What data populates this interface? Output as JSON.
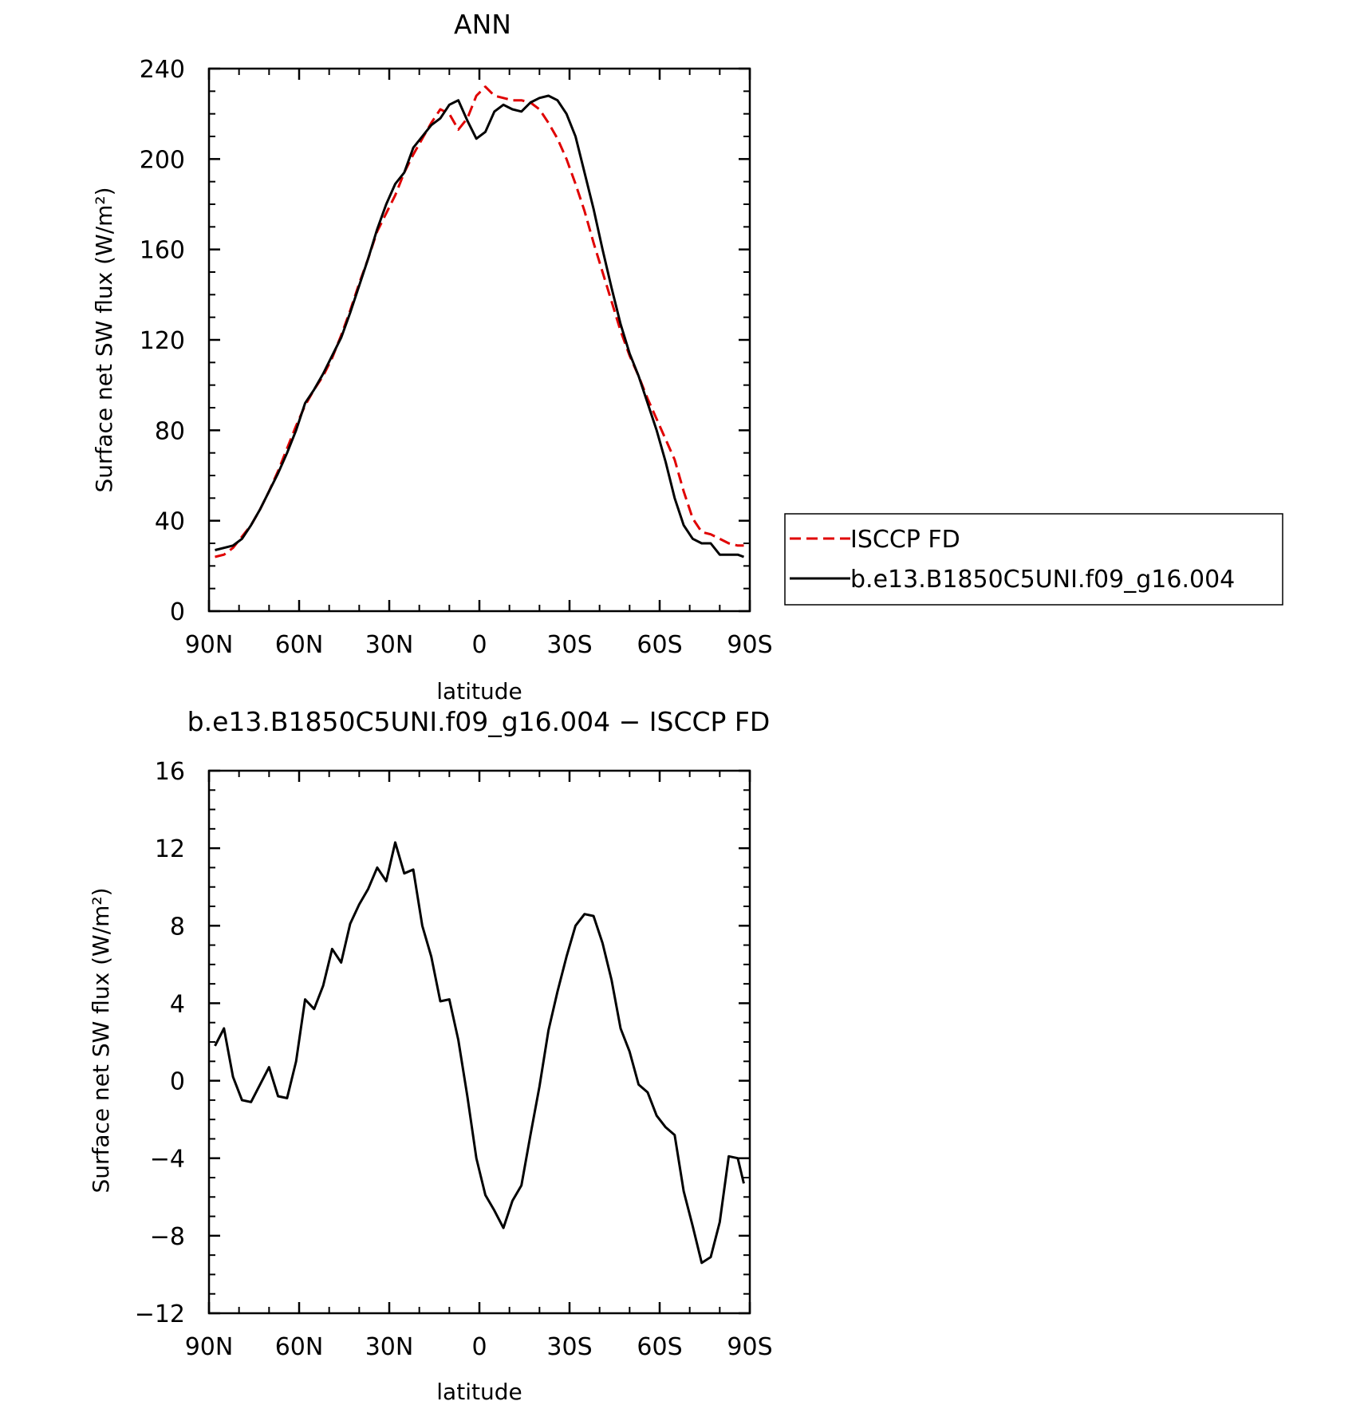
{
  "chart_data": [
    {
      "type": "line",
      "title": "ANN",
      "xlabel": "latitude",
      "ylabel": "Surface net SW flux (W/m²)",
      "xlim": [
        90,
        -90
      ],
      "ylim": [
        0,
        240
      ],
      "x_ticks": [
        90,
        60,
        30,
        0,
        -30,
        -60,
        -90
      ],
      "x_tick_labels": [
        "90N",
        "60N",
        "30N",
        "0",
        "30S",
        "60S",
        "90S"
      ],
      "y_ticks": [
        0,
        40,
        80,
        120,
        160,
        200,
        240
      ],
      "y_tick_labels": [
        "0",
        "40",
        "80",
        "120",
        "160",
        "200",
        "240"
      ],
      "legend_position": "right",
      "series": [
        {
          "name": "ISCCP FD",
          "color": "#e00000",
          "dash": true,
          "x": [
            88,
            85,
            82,
            79,
            76,
            73,
            70,
            67,
            64,
            61,
            58,
            55,
            52,
            49,
            46,
            43,
            40,
            37,
            34,
            31,
            28,
            25,
            22,
            19,
            16,
            13,
            10,
            7,
            4,
            1,
            -2,
            -5,
            -8,
            -11,
            -14,
            -17,
            -20,
            -23,
            -26,
            -29,
            -32,
            -35,
            -38,
            -41,
            -44,
            -47,
            -50,
            -53,
            -56,
            -59,
            -62,
            -65,
            -68,
            -71,
            -74,
            -77,
            -80,
            -83,
            -86,
            -88
          ],
          "y": [
            24,
            25,
            28,
            33,
            38,
            45,
            53,
            62,
            72,
            82,
            91,
            98,
            104,
            112,
            122,
            133,
            145,
            156,
            168,
            176,
            184,
            194,
            202,
            209,
            216,
            222,
            220,
            213,
            218,
            228,
            232,
            228,
            227,
            226,
            226,
            225,
            222,
            216,
            209,
            200,
            189,
            177,
            163,
            150,
            137,
            124,
            113,
            104,
            94,
            85,
            76,
            67,
            53,
            41,
            35,
            34,
            32,
            30,
            29,
            29
          ]
        },
        {
          "name": "b.e13.B1850C5UNI.f09_g16.004",
          "color": "#000000",
          "dash": false,
          "x": [
            88,
            85,
            82,
            79,
            76,
            73,
            70,
            67,
            64,
            61,
            58,
            55,
            52,
            49,
            46,
            43,
            40,
            37,
            34,
            31,
            28,
            25,
            22,
            19,
            16,
            13,
            10,
            7,
            4,
            1,
            -2,
            -5,
            -8,
            -11,
            -14,
            -17,
            -20,
            -23,
            -26,
            -29,
            -32,
            -35,
            -38,
            -41,
            -44,
            -47,
            -50,
            -53,
            -56,
            -59,
            -62,
            -65,
            -68,
            -71,
            -74,
            -77,
            -80,
            -83,
            -86,
            -88
          ],
          "y": [
            27,
            28,
            29,
            32,
            38,
            45,
            53,
            61,
            70,
            80,
            92,
            98,
            105,
            113,
            121,
            132,
            144,
            156,
            169,
            180,
            189,
            194,
            205,
            210,
            215,
            218,
            224,
            226,
            217,
            209,
            212,
            221,
            224,
            222,
            221,
            225,
            227,
            228,
            226,
            220,
            210,
            194,
            178,
            160,
            143,
            127,
            114,
            104,
            92,
            80,
            66,
            50,
            38,
            32,
            30,
            30,
            25,
            25,
            25,
            24
          ]
        }
      ]
    },
    {
      "type": "line",
      "title": "b.e13.B1850C5UNI.f09_g16.004 − ISCCP FD",
      "xlabel": "latitude",
      "ylabel": "Surface net SW flux (W/m²)",
      "xlim": [
        90,
        -90
      ],
      "ylim": [
        -12,
        16
      ],
      "x_ticks": [
        90,
        60,
        30,
        0,
        -30,
        -60,
        -90
      ],
      "x_tick_labels": [
        "90N",
        "60N",
        "30N",
        "0",
        "30S",
        "60S",
        "90S"
      ],
      "y_ticks": [
        -12,
        -8,
        -4,
        0,
        4,
        8,
        12,
        16
      ],
      "y_tick_labels": [
        "−12",
        "−8",
        "−4",
        "0",
        "4",
        "8",
        "12",
        "16"
      ],
      "series": [
        {
          "color": "#000000",
          "dash": false,
          "x": [
            88,
            85,
            82,
            79,
            76,
            73,
            70,
            67,
            64,
            61,
            58,
            55,
            52,
            49,
            46,
            43,
            40,
            37,
            34,
            31,
            28,
            25,
            22,
            19,
            16,
            13,
            10,
            7,
            4,
            1,
            -2,
            -5,
            -8,
            -11,
            -14,
            -17,
            -20,
            -23,
            -26,
            -29,
            -32,
            -35,
            -38,
            -41,
            -44,
            -47,
            -50,
            -53,
            -56,
            -59,
            -62,
            -65,
            -68,
            -71,
            -74,
            -77,
            -80,
            -83,
            -86,
            -88
          ],
          "y": [
            1.8,
            2.7,
            0.2,
            -1.0,
            -1.1,
            -0.2,
            0.7,
            -0.8,
            -0.9,
            1.0,
            4.2,
            3.7,
            4.9,
            6.8,
            6.1,
            8.1,
            9.1,
            9.9,
            11.0,
            10.3,
            12.3,
            10.7,
            10.9,
            8.0,
            6.4,
            4.1,
            4.2,
            2.1,
            -0.8,
            -4.0,
            -5.9,
            -6.7,
            -7.6,
            -6.2,
            -5.4,
            -2.8,
            -0.3,
            2.6,
            4.6,
            6.4,
            8.0,
            8.6,
            8.5,
            7.1,
            5.2,
            2.7,
            1.5,
            -0.2,
            -0.6,
            -1.8,
            -2.4,
            -2.8,
            -5.7,
            -7.5,
            -9.4,
            -9.1,
            -7.3,
            -3.9,
            -4.0,
            -5.3
          ]
        }
      ]
    }
  ]
}
